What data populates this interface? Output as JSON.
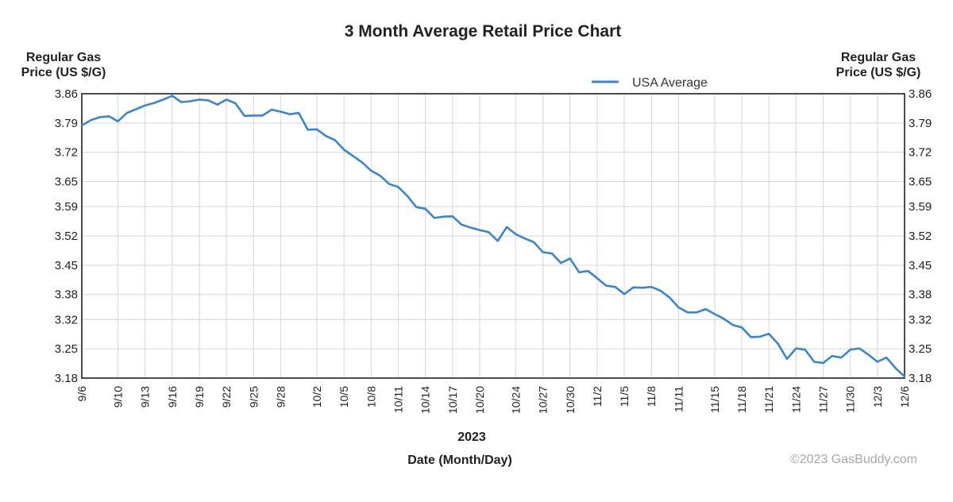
{
  "chart_data": {
    "type": "line",
    "title": "3 Month Average Retail Price Chart",
    "ylabel_left": [
      "Regular Gas",
      "Price (US $/G)"
    ],
    "ylabel_right": [
      "Regular Gas",
      "Price (US $/G)"
    ],
    "xlabel": "Date (Month/Day)",
    "year_label": "2023",
    "copyright": "©2023 GasBuddy.com",
    "ylim": [
      3.18,
      3.86
    ],
    "yticks": [
      {
        "value": 3.86,
        "label": "3.86"
      },
      {
        "value": 3.79,
        "label": "3.79"
      },
      {
        "value": 3.72,
        "label": "3.72"
      },
      {
        "value": 3.65,
        "label": "3.65"
      },
      {
        "value": 3.59,
        "label": "3.59"
      },
      {
        "value": 3.52,
        "label": "3.52"
      },
      {
        "value": 3.45,
        "label": "3.45"
      },
      {
        "value": 3.38,
        "label": "3.38"
      },
      {
        "value": 3.32,
        "label": "3.32"
      },
      {
        "value": 3.25,
        "label": "3.25"
      },
      {
        "value": 3.18,
        "label": "3.18"
      }
    ],
    "day_range": [
      0,
      91
    ],
    "xticks": [
      {
        "day": 0,
        "label": "9/6"
      },
      {
        "day": 4,
        "label": "9/10"
      },
      {
        "day": 7,
        "label": "9/13"
      },
      {
        "day": 10,
        "label": "9/16"
      },
      {
        "day": 13,
        "label": "9/19"
      },
      {
        "day": 16,
        "label": "9/22"
      },
      {
        "day": 19,
        "label": "9/25"
      },
      {
        "day": 22,
        "label": "9/28"
      },
      {
        "day": 26,
        "label": "10/2"
      },
      {
        "day": 29,
        "label": "10/5"
      },
      {
        "day": 32,
        "label": "10/8"
      },
      {
        "day": 35,
        "label": "10/11"
      },
      {
        "day": 38,
        "label": "10/14"
      },
      {
        "day": 41,
        "label": "10/17"
      },
      {
        "day": 44,
        "label": "10/20"
      },
      {
        "day": 48,
        "label": "10/24"
      },
      {
        "day": 51,
        "label": "10/27"
      },
      {
        "day": 54,
        "label": "10/30"
      },
      {
        "day": 57,
        "label": "11/2"
      },
      {
        "day": 60,
        "label": "11/5"
      },
      {
        "day": 63,
        "label": "11/8"
      },
      {
        "day": 66,
        "label": "11/11"
      },
      {
        "day": 70,
        "label": "11/15"
      },
      {
        "day": 73,
        "label": "11/18"
      },
      {
        "day": 76,
        "label": "11/21"
      },
      {
        "day": 79,
        "label": "11/24"
      },
      {
        "day": 82,
        "label": "11/27"
      },
      {
        "day": 85,
        "label": "11/30"
      },
      {
        "day": 88,
        "label": "12/3"
      },
      {
        "day": 91,
        "label": "12/6"
      }
    ],
    "legend": {
      "position": "top-right",
      "label": "USA Average",
      "color": "#3a85d0"
    },
    "series": [
      {
        "name": "USA Average",
        "color": "#3a85d0",
        "points": [
          [
            0,
            3.784
          ],
          [
            1,
            3.797
          ],
          [
            2,
            3.804
          ],
          [
            3,
            3.806
          ],
          [
            4,
            3.794
          ],
          [
            5,
            3.814
          ],
          [
            6,
            3.823
          ],
          [
            7,
            3.832
          ],
          [
            8,
            3.838
          ],
          [
            9,
            3.846
          ],
          [
            10,
            3.855
          ],
          [
            11,
            3.84
          ],
          [
            12,
            3.842
          ],
          [
            13,
            3.846
          ],
          [
            14,
            3.844
          ],
          [
            15,
            3.834
          ],
          [
            16,
            3.846
          ],
          [
            17,
            3.837
          ],
          [
            18,
            3.807
          ],
          [
            19,
            3.808
          ],
          [
            20,
            3.808
          ],
          [
            21,
            3.822
          ],
          [
            22,
            3.817
          ],
          [
            23,
            3.811
          ],
          [
            24,
            3.814
          ],
          [
            25,
            3.774
          ],
          [
            26,
            3.775
          ],
          [
            27,
            3.759
          ],
          [
            28,
            3.749
          ],
          [
            29,
            3.726
          ],
          [
            30,
            3.711
          ],
          [
            31,
            3.696
          ],
          [
            32,
            3.676
          ],
          [
            33,
            3.664
          ],
          [
            34,
            3.644
          ],
          [
            35,
            3.637
          ],
          [
            36,
            3.616
          ],
          [
            37,
            3.589
          ],
          [
            38,
            3.585
          ],
          [
            39,
            3.563
          ],
          [
            40,
            3.566
          ],
          [
            41,
            3.567
          ],
          [
            42,
            3.547
          ],
          [
            43,
            3.54
          ],
          [
            44,
            3.534
          ],
          [
            45,
            3.529
          ],
          [
            46,
            3.508
          ],
          [
            47,
            3.541
          ],
          [
            48,
            3.524
          ],
          [
            49,
            3.514
          ],
          [
            50,
            3.505
          ],
          [
            51,
            3.481
          ],
          [
            52,
            3.478
          ],
          [
            53,
            3.455
          ],
          [
            54,
            3.466
          ],
          [
            55,
            3.433
          ],
          [
            56,
            3.436
          ],
          [
            57,
            3.419
          ],
          [
            58,
            3.401
          ],
          [
            59,
            3.398
          ],
          [
            60,
            3.381
          ],
          [
            61,
            3.397
          ],
          [
            62,
            3.396
          ],
          [
            63,
            3.398
          ],
          [
            64,
            3.389
          ],
          [
            65,
            3.373
          ],
          [
            66,
            3.349
          ],
          [
            67,
            3.337
          ],
          [
            68,
            3.337
          ],
          [
            69,
            3.345
          ],
          [
            70,
            3.333
          ],
          [
            71,
            3.322
          ],
          [
            72,
            3.307
          ],
          [
            73,
            3.301
          ],
          [
            74,
            3.278
          ],
          [
            75,
            3.279
          ],
          [
            76,
            3.286
          ],
          [
            77,
            3.262
          ],
          [
            78,
            3.226
          ],
          [
            79,
            3.251
          ],
          [
            80,
            3.248
          ],
          [
            81,
            3.219
          ],
          [
            82,
            3.216
          ],
          [
            83,
            3.233
          ],
          [
            84,
            3.229
          ],
          [
            85,
            3.248
          ],
          [
            86,
            3.251
          ],
          [
            87,
            3.236
          ],
          [
            88,
            3.219
          ],
          [
            89,
            3.229
          ],
          [
            90,
            3.204
          ],
          [
            91,
            3.184
          ]
        ]
      }
    ]
  }
}
